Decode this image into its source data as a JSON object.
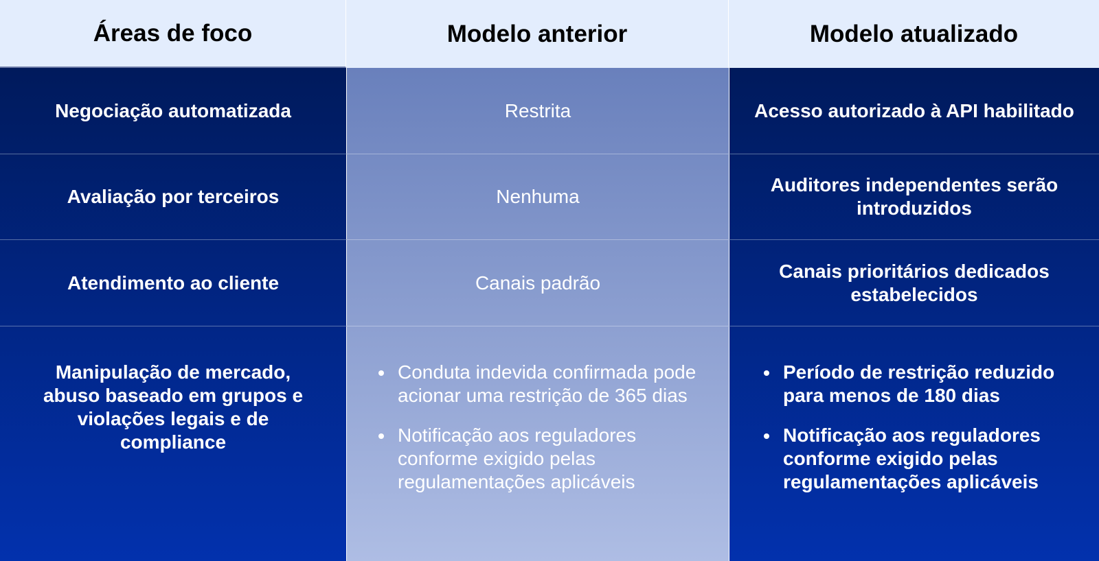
{
  "headers": [
    "Áreas de foco",
    "Modelo anterior",
    "Modelo atualizado"
  ],
  "rows": [
    {
      "area": "Negociação automatizada",
      "previous": "Restrita",
      "updated": "Acesso autorizado à API habilitado"
    },
    {
      "area": "Avaliação por terceiros",
      "previous": "Nenhuma",
      "updated": "Auditores independentes serão introduzidos"
    },
    {
      "area": "Atendimento ao cliente",
      "previous": "Canais padrão",
      "updated": "Canais prioritários dedicados estabelecidos"
    },
    {
      "area": "Manipulação de mercado, abuso baseado em grupos e violações legais e de compliance",
      "previous_bullets": [
        "Conduta indevida confirmada pode acionar uma restrição de 365 dias",
        "Notificação aos reguladores conforme exigido pelas regulamentações aplicáveis"
      ],
      "updated_bullets": [
        "Período de restrição reduzido para menos de 180 dias",
        "Notificação aos reguladores conforme exigido pelas regulamentações aplicáveis"
      ]
    }
  ],
  "colors": {
    "header_bg": "#e3edfd",
    "dark_top": "#001a5c",
    "dark_bottom": "#0231ad",
    "middle_top": "#6980bc",
    "middle_bottom": "#aebde4"
  }
}
